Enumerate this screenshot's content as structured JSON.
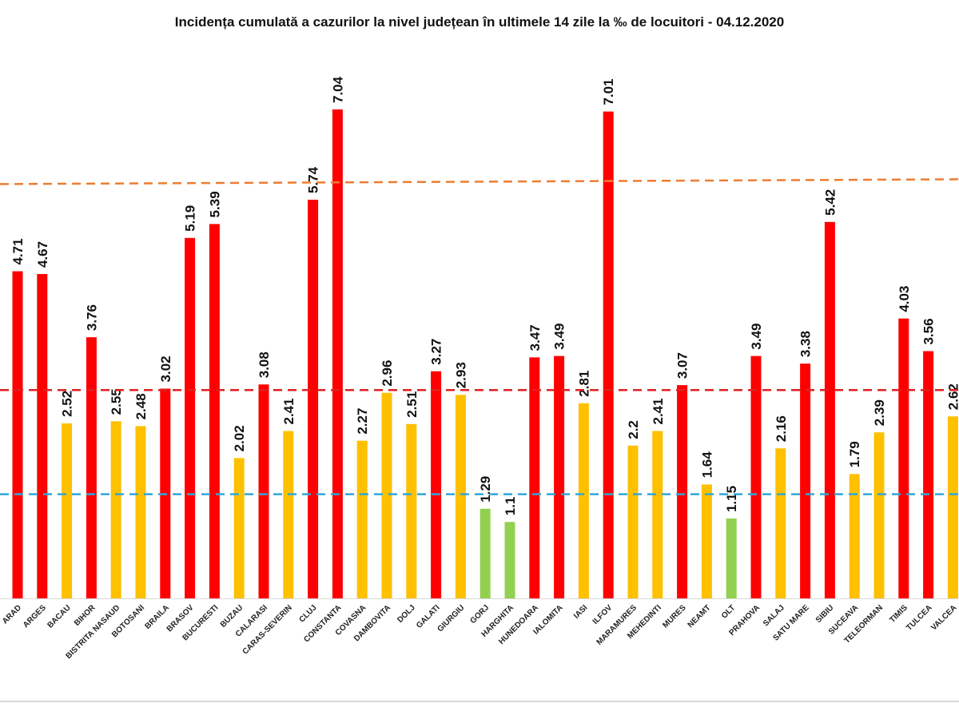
{
  "chart_data": {
    "type": "bar",
    "title": "Incidența cumulată a cazurilor la nivel județean în ultimele 14 zile la ‰ de locuitori - 04.12.2020",
    "categories": [
      "ARAD",
      "ARGES",
      "BACAU",
      "BIHOR",
      "BISTRITA NASAUD",
      "BOTOSANI",
      "BRAILA",
      "BRASOV",
      "BUCURESTI",
      "BUZAU",
      "CALARASI",
      "CARAS-SEVERIN",
      "CLUJ",
      "CONSTANTA",
      "COVASNA",
      "DAMBOVITA",
      "DOLJ",
      "GALATI",
      "GIURGIU",
      "GORJ",
      "HARGHITA",
      "HUNEDOARA",
      "IALOMITA",
      "IASI",
      "ILFOV",
      "MARAMURES",
      "MEHEDINTI",
      "MURES",
      "NEAMT",
      "OLT",
      "PRAHOVA",
      "SALAJ",
      "SATU MARE",
      "SIBIU",
      "SUCEAVA",
      "TELEORMAN",
      "TIMIS",
      "TULCEA",
      "VALCEA"
    ],
    "values": [
      4.71,
      4.67,
      2.52,
      3.76,
      2.55,
      2.48,
      3.02,
      5.19,
      5.39,
      2.02,
      3.08,
      2.41,
      5.74,
      7.04,
      2.27,
      2.96,
      2.51,
      3.27,
      2.93,
      1.29,
      1.1,
      3.47,
      3.49,
      2.81,
      7.01,
      2.2,
      2.41,
      3.07,
      1.64,
      1.15,
      3.49,
      2.16,
      3.38,
      5.42,
      1.79,
      2.39,
      4.03,
      3.56,
      2.62
    ],
    "value_labels": [
      "4.71",
      "4.67",
      "2.52",
      "3.76",
      "2.55",
      "2.48",
      "3.02",
      "5.19",
      "5.39",
      "2.02",
      "3.08",
      "2.41",
      "5.74",
      "7.04",
      "2.27",
      "2.96",
      "2.51",
      "3.27",
      "2.93",
      "1.29",
      "1.1",
      "3.47",
      "3.49",
      "2.81",
      "7.01",
      "2.2",
      "2.41",
      "3.07",
      "1.64",
      "1.15",
      "3.49",
      "2.16",
      "3.38",
      "5.42",
      "1.79",
      "2.39",
      "4.03",
      "3.56",
      "2.62"
    ],
    "thresholds": [
      {
        "value": 6,
        "color": "#ed7d31"
      },
      {
        "value": 3,
        "color": "#e02020"
      },
      {
        "value": 1.5,
        "color": "#2ea8d8"
      }
    ],
    "colors": {
      "high": "#ff0000",
      "medium": "#ffc000",
      "low": "#92d050"
    },
    "ylim": [
      0,
      7.04
    ],
    "grid": false,
    "legend": "none",
    "xlabel": "",
    "ylabel": ""
  }
}
